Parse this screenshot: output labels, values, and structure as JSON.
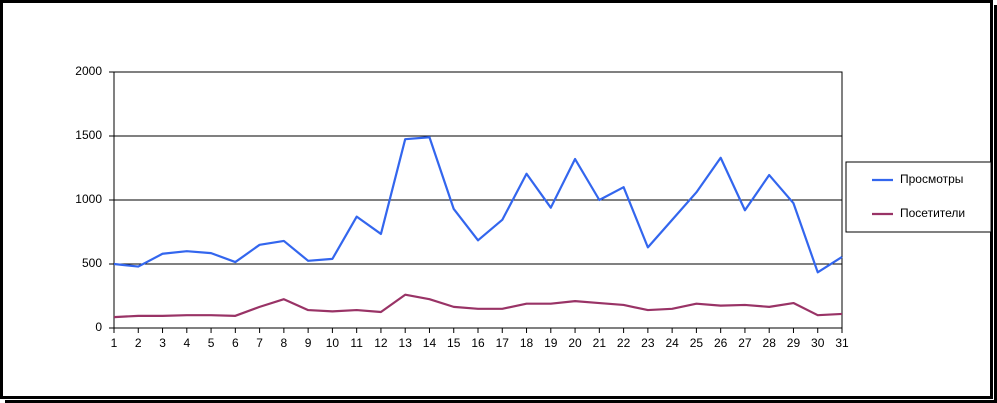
{
  "chart_data": {
    "type": "line",
    "categories": [
      "1",
      "2",
      "3",
      "4",
      "5",
      "6",
      "7",
      "8",
      "9",
      "10",
      "11",
      "12",
      "13",
      "14",
      "15",
      "16",
      "17",
      "18",
      "19",
      "20",
      "21",
      "22",
      "23",
      "24",
      "25",
      "26",
      "27",
      "28",
      "29",
      "30",
      "31"
    ],
    "series": [
      {
        "name": "Просмотры",
        "color": "#3366ee",
        "values": [
          500,
          480,
          580,
          600,
          585,
          515,
          650,
          680,
          525,
          540,
          870,
          735,
          1475,
          1490,
          930,
          685,
          845,
          1205,
          940,
          1320,
          1000,
          1100,
          630,
          845,
          1060,
          1330,
          920,
          1195,
          975,
          435,
          555
        ]
      },
      {
        "name": "Посетители",
        "color": "#993366",
        "values": [
          85,
          95,
          95,
          100,
          100,
          95,
          165,
          225,
          140,
          130,
          140,
          125,
          260,
          225,
          165,
          150,
          150,
          190,
          190,
          210,
          195,
          180,
          140,
          150,
          190,
          175,
          180,
          165,
          195,
          100,
          110
        ]
      }
    ],
    "ylim": [
      0,
      2000
    ],
    "yticks": [
      0,
      500,
      1000,
      1500,
      2000
    ],
    "grid": true,
    "legend": "right"
  }
}
